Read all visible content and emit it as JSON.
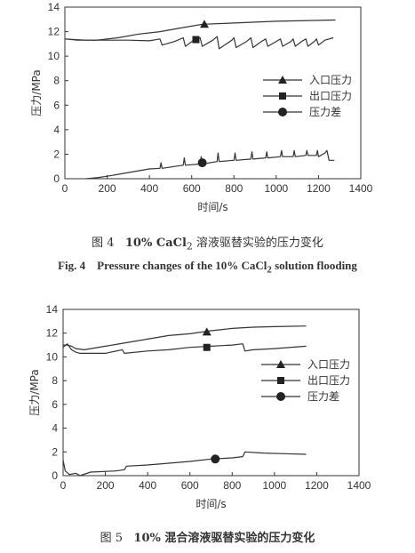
{
  "chart_data": [
    {
      "type": "line",
      "figure": "fig4",
      "xlabel": "时间/s",
      "ylabel": "压力/MPa",
      "xlim": [
        0,
        1400
      ],
      "ylim": [
        0,
        14
      ],
      "xticks": [
        0,
        200,
        400,
        600,
        800,
        1000,
        1200,
        1400
      ],
      "yticks": [
        0,
        2,
        4,
        6,
        8,
        10,
        12,
        14
      ],
      "legend_position": "right-middle",
      "series": [
        {
          "name": "入口压力",
          "marker": "triangle",
          "marker_at": [
            660,
            12.6
          ],
          "points": [
            [
              0,
              11.4
            ],
            [
              60,
              11.3
            ],
            [
              150,
              11.3
            ],
            [
              250,
              11.5
            ],
            [
              350,
              11.8
            ],
            [
              450,
              12.0
            ],
            [
              550,
              12.3
            ],
            [
              650,
              12.6
            ],
            [
              800,
              12.7
            ],
            [
              1000,
              12.85
            ],
            [
              1280,
              12.95
            ]
          ]
        },
        {
          "name": "出口压力",
          "marker": "square",
          "marker_at": [
            620,
            11.35
          ],
          "points": [
            [
              0,
              11.4
            ],
            [
              100,
              11.3
            ],
            [
              200,
              11.3
            ],
            [
              300,
              11.3
            ],
            [
              400,
              11.25
            ],
            [
              450,
              11.4
            ],
            [
              460,
              10.9
            ],
            [
              520,
              11.2
            ],
            [
              560,
              11.5
            ],
            [
              570,
              10.8
            ],
            [
              610,
              11.3
            ],
            [
              640,
              11.5
            ],
            [
              650,
              10.8
            ],
            [
              700,
              11.3
            ],
            [
              720,
              11.6
            ],
            [
              730,
              10.6
            ],
            [
              790,
              11.3
            ],
            [
              800,
              11.5
            ],
            [
              810,
              10.7
            ],
            [
              860,
              11.2
            ],
            [
              880,
              11.5
            ],
            [
              890,
              10.7
            ],
            [
              930,
              11.2
            ],
            [
              950,
              11.4
            ],
            [
              960,
              10.8
            ],
            [
              1000,
              11.2
            ],
            [
              1020,
              11.4
            ],
            [
              1030,
              10.8
            ],
            [
              1070,
              11.2
            ],
            [
              1080,
              11.4
            ],
            [
              1090,
              10.8
            ],
            [
              1120,
              11.2
            ],
            [
              1140,
              11.4
            ],
            [
              1150,
              10.8
            ],
            [
              1180,
              11.2
            ],
            [
              1190,
              11.4
            ],
            [
              1200,
              10.9
            ],
            [
              1230,
              11.3
            ],
            [
              1270,
              11.5
            ]
          ]
        },
        {
          "name": "压力差",
          "marker": "circle",
          "marker_at": [
            650,
            1.3
          ],
          "points": [
            [
              100,
              0.0
            ],
            [
              130,
              0.05
            ],
            [
              160,
              0.1
            ],
            [
              200,
              0.2
            ],
            [
              300,
              0.5
            ],
            [
              400,
              0.8
            ],
            [
              450,
              0.85
            ],
            [
              455,
              1.3
            ],
            [
              460,
              0.85
            ],
            [
              520,
              1.0
            ],
            [
              560,
              1.1
            ],
            [
              565,
              1.7
            ],
            [
              570,
              1.1
            ],
            [
              640,
              1.2
            ],
            [
              645,
              1.8
            ],
            [
              650,
              1.2
            ],
            [
              720,
              1.4
            ],
            [
              725,
              2.1
            ],
            [
              730,
              1.4
            ],
            [
              800,
              1.5
            ],
            [
              805,
              2.1
            ],
            [
              810,
              1.5
            ],
            [
              880,
              1.6
            ],
            [
              885,
              2.2
            ],
            [
              890,
              1.6
            ],
            [
              950,
              1.7
            ],
            [
              955,
              2.2
            ],
            [
              960,
              1.7
            ],
            [
              1020,
              1.8
            ],
            [
              1025,
              2.3
            ],
            [
              1030,
              1.8
            ],
            [
              1080,
              1.8
            ],
            [
              1085,
              2.3
            ],
            [
              1090,
              1.8
            ],
            [
              1140,
              1.9
            ],
            [
              1145,
              2.3
            ],
            [
              1150,
              1.9
            ],
            [
              1190,
              1.9
            ],
            [
              1195,
              2.3
            ],
            [
              1200,
              1.8
            ],
            [
              1230,
              2.1
            ],
            [
              1240,
              2.3
            ],
            [
              1250,
              1.5
            ],
            [
              1275,
              1.5
            ]
          ]
        }
      ]
    },
    {
      "type": "line",
      "figure": "fig5",
      "xlabel": "时间/s",
      "ylabel": "压力/MPa",
      "xlim": [
        0,
        1400
      ],
      "ylim": [
        0,
        14
      ],
      "xticks": [
        0,
        200,
        400,
        600,
        800,
        1000,
        1200,
        1400
      ],
      "yticks": [
        0,
        2,
        4,
        6,
        8,
        10,
        12,
        14
      ],
      "legend_position": "right-middle",
      "series": [
        {
          "name": "入口压力",
          "marker": "triangle",
          "marker_at": [
            680,
            12.1
          ],
          "points": [
            [
              0,
              11.0
            ],
            [
              20,
              11.0
            ],
            [
              40,
              10.9
            ],
            [
              60,
              10.7
            ],
            [
              100,
              10.6
            ],
            [
              200,
              10.9
            ],
            [
              300,
              11.2
            ],
            [
              400,
              11.5
            ],
            [
              500,
              11.8
            ],
            [
              600,
              11.95
            ],
            [
              700,
              12.2
            ],
            [
              800,
              12.4
            ],
            [
              900,
              12.5
            ],
            [
              1000,
              12.55
            ],
            [
              1150,
              12.6
            ]
          ]
        },
        {
          "name": "出口压力",
          "marker": "square",
          "marker_at": [
            680,
            10.8
          ],
          "points": [
            [
              0,
              10.8
            ],
            [
              20,
              11.1
            ],
            [
              40,
              10.6
            ],
            [
              60,
              10.4
            ],
            [
              80,
              10.3
            ],
            [
              100,
              10.3
            ],
            [
              200,
              10.3
            ],
            [
              280,
              10.6
            ],
            [
              290,
              10.3
            ],
            [
              400,
              10.5
            ],
            [
              500,
              10.6
            ],
            [
              600,
              10.8
            ],
            [
              700,
              10.9
            ],
            [
              800,
              11.0
            ],
            [
              850,
              11.1
            ],
            [
              860,
              10.5
            ],
            [
              900,
              10.6
            ],
            [
              1000,
              10.7
            ],
            [
              1150,
              10.9
            ]
          ]
        },
        {
          "name": "压力差",
          "marker": "circle",
          "marker_at": [
            720,
            1.4
          ],
          "points": [
            [
              0,
              1.3
            ],
            [
              10,
              0.4
            ],
            [
              30,
              0.1
            ],
            [
              60,
              0.2
            ],
            [
              80,
              0.0
            ],
            [
              130,
              0.3
            ],
            [
              250,
              0.4
            ],
            [
              290,
              0.5
            ],
            [
              300,
              0.8
            ],
            [
              400,
              0.9
            ],
            [
              500,
              1.05
            ],
            [
              600,
              1.2
            ],
            [
              700,
              1.4
            ],
            [
              800,
              1.5
            ],
            [
              850,
              1.6
            ],
            [
              860,
              2.0
            ],
            [
              950,
              1.9
            ],
            [
              1050,
              1.85
            ],
            [
              1150,
              1.8
            ]
          ]
        }
      ]
    }
  ],
  "captions": {
    "fig4_cn_prefix": "图 4",
    "fig4_cn_body": "10% CaCl",
    "fig4_cn_sub": "2",
    "fig4_cn_tail": " 溶液驱替实验的压力变化",
    "fig4_en_prefix": "Fig. 4",
    "fig4_en_body": "Pressure changes of the 10% CaCl",
    "fig4_en_sub": "2",
    "fig4_en_tail": " solution flooding",
    "fig5_cn_prefix": "图 5",
    "fig5_cn_body": "10% 混合溶液驱替实验的压力变化"
  }
}
